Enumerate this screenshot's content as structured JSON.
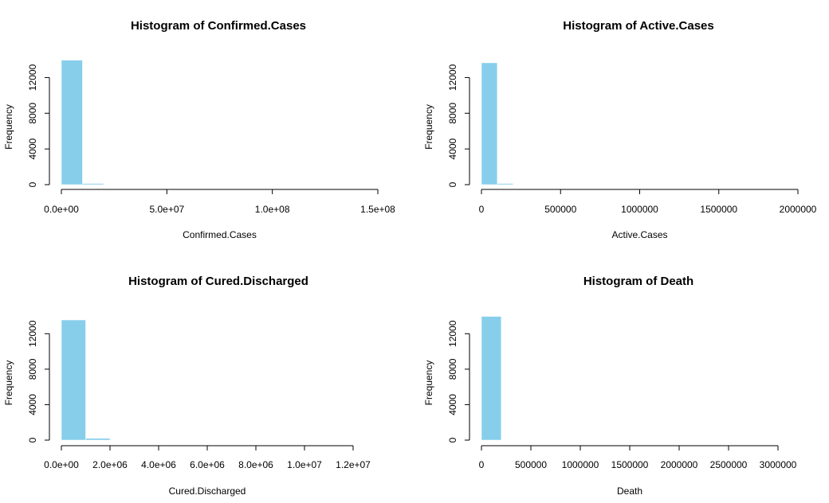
{
  "chart_data": [
    {
      "type": "bar",
      "title": "Histogram of Confirmed.Cases",
      "xlabel": "Confirmed.Cases",
      "ylabel": "Frequency",
      "bar_color": "#87CEEB",
      "bin_edges": [
        0,
        10000000,
        20000000
      ],
      "values": [
        13950,
        130
      ],
      "xlim": [
        0,
        150000000
      ],
      "ylim": [
        0,
        14000
      ],
      "x_ticks": [
        0,
        50000000,
        100000000,
        150000000
      ],
      "x_tick_labels": [
        "0.0e+00",
        "5.0e+07",
        "1.0e+08",
        "1.5e+08"
      ],
      "y_ticks": [
        0,
        4000,
        8000,
        12000
      ],
      "y_tick_labels": [
        "0",
        "4000",
        "8000",
        "12000"
      ],
      "grid": false
    },
    {
      "type": "bar",
      "title": "Histogram of Active.Cases",
      "xlabel": "Active.Cases",
      "ylabel": "Frequency",
      "bar_color": "#87CEEB",
      "bin_edges": [
        0,
        100000,
        200000
      ],
      "values": [
        13650,
        130
      ],
      "xlim": [
        0,
        2000000
      ],
      "ylim": [
        0,
        14000
      ],
      "x_ticks": [
        0,
        500000,
        1000000,
        1500000,
        2000000
      ],
      "x_tick_labels": [
        "0",
        "500000",
        "1000000",
        "1500000",
        "2000000"
      ],
      "y_ticks": [
        0,
        4000,
        8000,
        12000
      ],
      "y_tick_labels": [
        "0",
        "4000",
        "8000",
        "12000"
      ],
      "grid": false
    },
    {
      "type": "bar",
      "title": "Histogram of Cured.Discharged",
      "xlabel": "Cured.Discharged",
      "ylabel": "Frequency",
      "bar_color": "#87CEEB",
      "bin_edges": [
        0,
        1000000,
        2000000
      ],
      "values": [
        13550,
        200
      ],
      "xlim": [
        0,
        12000000
      ],
      "ylim": [
        0,
        14000
      ],
      "x_ticks": [
        0,
        2000000,
        4000000,
        6000000,
        8000000,
        10000000,
        12000000
      ],
      "x_tick_labels": [
        "0.0e+00",
        "2.0e+06",
        "4.0e+06",
        "6.0e+06",
        "8.0e+06",
        "1.0e+07",
        "1.2e+07"
      ],
      "y_ticks": [
        0,
        4000,
        8000,
        12000
      ],
      "y_tick_labels": [
        "0",
        "4000",
        "8000",
        "12000"
      ],
      "grid": false
    },
    {
      "type": "bar",
      "title": "Histogram of Death",
      "xlabel": "Death",
      "ylabel": "Frequency",
      "bar_color": "#87CEEB",
      "bin_edges": [
        0,
        200000
      ],
      "values": [
        13950
      ],
      "xlim": [
        0,
        3000000
      ],
      "ylim": [
        0,
        14000
      ],
      "x_ticks": [
        0,
        500000,
        1000000,
        1500000,
        2000000,
        2500000,
        3000000
      ],
      "x_tick_labels": [
        "0",
        "500000",
        "1000000",
        "1500000",
        "2000000",
        "2500000",
        "3000000"
      ],
      "y_ticks": [
        0,
        4000,
        8000,
        12000
      ],
      "y_tick_labels": [
        "0",
        "4000",
        "8000",
        "12000"
      ],
      "grid": false
    }
  ]
}
